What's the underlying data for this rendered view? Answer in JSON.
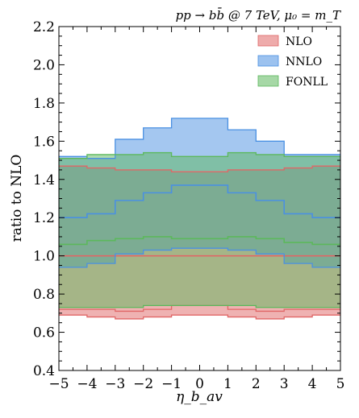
{
  "chart_data": {
    "type": "area",
    "title": "pp → bb̄ @ 7 TeV, μ₀ = m_T",
    "xlabel": "η_b_av",
    "ylabel": "ratio to NLO",
    "xlim": [
      -5,
      5
    ],
    "ylim": [
      0.4,
      2.2
    ],
    "xticks": [
      -5,
      -4,
      -3,
      -2,
      -1,
      0,
      1,
      2,
      3,
      4,
      5
    ],
    "yticks": [
      0.4,
      0.6,
      0.8,
      1.0,
      1.2,
      1.4,
      1.6,
      1.8,
      2.0,
      2.2
    ],
    "xtick_labels": [
      "−5",
      "−4",
      "−3",
      "−2",
      "−1",
      "0",
      "1",
      "2",
      "3",
      "4",
      "5"
    ],
    "ytick_labels": [
      "0.4",
      "0.6",
      "0.8",
      "1.0",
      "1.2",
      "1.4",
      "1.6",
      "1.8",
      "2.0",
      "2.2"
    ],
    "grid": false,
    "legend_position": "top-right",
    "bin_edges": [
      -5,
      -4,
      -3,
      -2,
      -1,
      0,
      1,
      2,
      3,
      4,
      5
    ],
    "series": [
      {
        "name": "NLO",
        "color": "#e06666",
        "central": [
          1.0,
          1.0,
          1.0,
          1.0,
          1.0,
          1.0,
          1.0,
          1.0,
          1.0,
          1.0
        ],
        "lower": [
          0.69,
          0.68,
          0.67,
          0.68,
          0.69,
          0.69,
          0.68,
          0.67,
          0.68,
          0.69
        ],
        "upper": [
          1.47,
          1.46,
          1.45,
          1.45,
          1.44,
          1.44,
          1.45,
          1.45,
          1.46,
          1.47
        ],
        "lower_line": [
          0.72,
          0.72,
          0.71,
          0.72,
          0.74,
          0.74,
          0.72,
          0.71,
          0.72,
          0.72
        ]
      },
      {
        "name": "NNLO",
        "color": "#4a90e2",
        "central": [
          1.2,
          1.22,
          1.29,
          1.33,
          1.37,
          1.37,
          1.33,
          1.29,
          1.22,
          1.2
        ],
        "lower": [
          0.94,
          0.96,
          1.01,
          1.03,
          1.04,
          1.04,
          1.03,
          1.01,
          0.96,
          0.94
        ],
        "upper": [
          1.52,
          1.51,
          1.61,
          1.67,
          1.72,
          1.72,
          1.66,
          1.6,
          1.53,
          1.53
        ]
      },
      {
        "name": "FONLL",
        "color": "#5cb85c",
        "central": [
          1.06,
          1.08,
          1.09,
          1.1,
          1.09,
          1.09,
          1.1,
          1.09,
          1.07,
          1.06
        ],
        "lower": [
          0.73,
          0.73,
          0.73,
          0.74,
          0.74,
          0.74,
          0.74,
          0.73,
          0.73,
          0.73
        ],
        "upper": [
          1.51,
          1.53,
          1.53,
          1.54,
          1.52,
          1.52,
          1.54,
          1.53,
          1.52,
          1.52
        ]
      }
    ]
  }
}
